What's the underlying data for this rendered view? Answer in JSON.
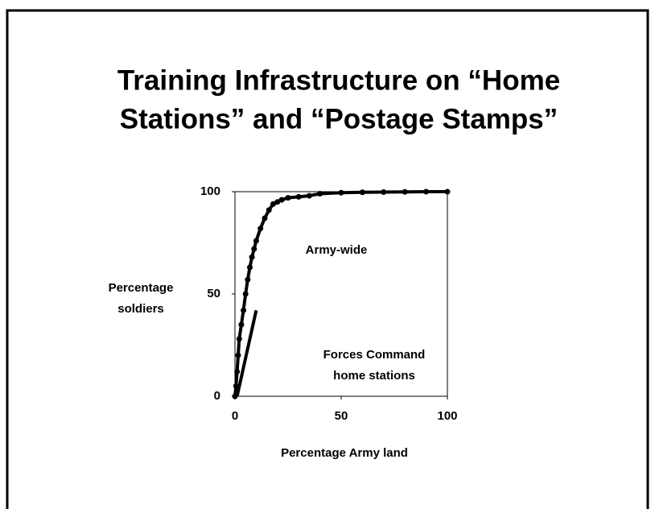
{
  "chart_data": {
    "type": "line",
    "title": [
      "Training Infrastructure on “Home",
      "Stations” and “Postage Stamps”"
    ],
    "xlabel": "Percentage Army land",
    "ylabel": [
      "Percentage",
      "soldiers"
    ],
    "xlim": [
      0,
      100
    ],
    "ylim": [
      0,
      100
    ],
    "xticks": [
      0,
      50,
      100
    ],
    "yticks": [
      0,
      50,
      100
    ],
    "series": [
      {
        "name": "Army-wide",
        "color": "#000000",
        "markers": true,
        "x": [
          0,
          0.5,
          1,
          1.5,
          2,
          3,
          4,
          5,
          6,
          7,
          8,
          9,
          10,
          12,
          14,
          16,
          18,
          20,
          22,
          25,
          30,
          35,
          40,
          50,
          60,
          70,
          80,
          90,
          100
        ],
        "values": [
          0,
          5,
          12,
          20,
          28,
          35,
          42,
          50,
          57,
          63,
          68,
          72,
          76,
          82,
          87,
          91,
          94,
          95,
          96,
          97,
          97.5,
          98,
          99,
          99.5,
          99.7,
          99.8,
          99.9,
          100,
          100
        ]
      },
      {
        "name": [
          "Forces Command",
          "home stations"
        ],
        "color": "#000000",
        "markers": false,
        "x": [
          1,
          10
        ],
        "values": [
          0,
          42
        ]
      }
    ]
  }
}
